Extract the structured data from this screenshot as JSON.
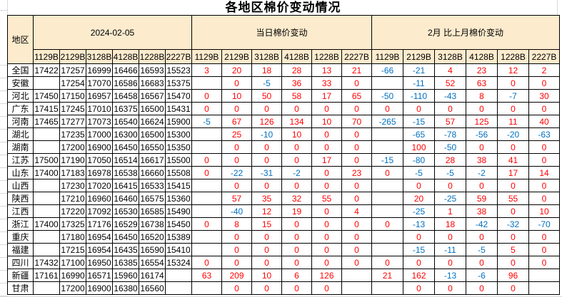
{
  "title": "各地区棉价变动情况",
  "colors": {
    "header_bg": "#FCEBCD",
    "positive_change": "#FF0000",
    "negative_change": "#0070C0",
    "table_border": "#000000"
  },
  "table": {
    "region_header": "地区",
    "groups": [
      {
        "label": "2024-02-05"
      },
      {
        "label": "当日棉价变动"
      },
      {
        "label": "2月 比上月棉价变动"
      }
    ],
    "subheaders": [
      "1129B",
      "2129B",
      "3128B",
      "4128B",
      "1228B",
      "2227B"
    ],
    "rows": [
      {
        "region": "全国",
        "prices": [
          17422,
          17257,
          16999,
          16466,
          16593,
          15523
        ],
        "daily": [
          3,
          20,
          18,
          28,
          13,
          21
        ],
        "monthly": [
          -66,
          -21,
          4,
          23,
          12,
          2
        ]
      },
      {
        "region": "安徽",
        "prices": [
          null,
          17254,
          17070,
          16586,
          16683,
          15375
        ],
        "daily": [
          null,
          0,
          -5,
          36,
          33,
          0
        ],
        "monthly": [
          null,
          -11,
          52,
          63,
          0,
          0
        ]
      },
      {
        "region": "河北",
        "prices": [
          17450,
          17150,
          16957,
          16458,
          16567,
          15470
        ],
        "daily": [
          0,
          10,
          50,
          58,
          17,
          65
        ],
        "monthly": [
          -50,
          -110,
          -43,
          8,
          -7,
          30
        ]
      },
      {
        "region": "广东",
        "prices": [
          17415,
          17245,
          17010,
          16375,
          16500,
          15431
        ],
        "daily": [
          0,
          0,
          0,
          0,
          0,
          0
        ],
        "monthly": [
          0,
          0,
          0,
          0,
          0,
          0
        ]
      },
      {
        "region": "河南",
        "prices": [
          17465,
          17277,
          17073,
          16540,
          16624,
          15900
        ],
        "daily": [
          -5,
          67,
          126,
          134,
          10,
          70
        ],
        "monthly": [
          -265,
          -15,
          57,
          125,
          11,
          40
        ]
      },
      {
        "region": "湖北",
        "prices": [
          null,
          17235,
          17000,
          16300,
          16500,
          15300
        ],
        "daily": [
          null,
          25,
          -10,
          10,
          0,
          0
        ],
        "monthly": [
          null,
          -65,
          -78,
          -56,
          -20,
          -63
        ]
      },
      {
        "region": "湖南",
        "prices": [
          null,
          17200,
          16900,
          16450,
          16550,
          15350
        ],
        "daily": [
          null,
          0,
          0,
          0,
          0,
          0
        ],
        "monthly": [
          null,
          100,
          -50,
          0,
          0,
          0
        ]
      },
      {
        "region": "江苏",
        "prices": [
          17500,
          17190,
          17050,
          16514,
          16617,
          15500
        ],
        "daily": [
          0,
          0,
          0,
          0,
          17,
          0
        ],
        "monthly": [
          -15,
          -80,
          28,
          38,
          41,
          0
        ]
      },
      {
        "region": "山东",
        "prices": [
          17400,
          17183,
          16978,
          16538,
          16660,
          15508
        ],
        "daily": [
          0,
          -22,
          -31,
          -2,
          0,
          23
        ],
        "monthly": [
          0,
          -5,
          -5,
          -2,
          17,
          14
        ]
      },
      {
        "region": "山西",
        "prices": [
          null,
          17230,
          17020,
          16415,
          16533,
          15415
        ],
        "daily": [
          null,
          0,
          0,
          0,
          0,
          0
        ],
        "monthly": [
          null,
          0,
          0,
          0,
          0,
          0
        ]
      },
      {
        "region": "陕西",
        "prices": [
          null,
          17210,
          16960,
          16460,
          16575,
          15360
        ],
        "daily": [
          null,
          57,
          35,
          32,
          55,
          0
        ],
        "monthly": [
          null,
          20,
          -25,
          59,
          55,
          0
        ]
      },
      {
        "region": "江西",
        "prices": [
          null,
          17220,
          17092,
          16530,
          16585,
          15490
        ],
        "daily": [
          null,
          -40,
          12,
          19,
          0,
          4
        ],
        "monthly": [
          null,
          -25,
          1,
          38,
          0,
          10
        ]
      },
      {
        "region": "浙江",
        "prices": [
          17400,
          17325,
          17176,
          16529,
          16738,
          15450
        ],
        "daily": [
          0,
          8,
          15,
          0,
          0,
          0
        ],
        "monthly": [
          0,
          -13,
          18,
          -42,
          -32,
          -70
        ]
      },
      {
        "region": "重庆",
        "prices": [
          null,
          17180,
          16954,
          16450,
          16520,
          15389
        ],
        "daily": [
          null,
          0,
          0,
          0,
          0,
          0
        ],
        "monthly": [
          null,
          0,
          0,
          0,
          0,
          0
        ]
      },
      {
        "region": "福建",
        "prices": [
          null,
          17215,
          16954,
          16435,
          16590,
          15410
        ],
        "daily": [
          null,
          0,
          0,
          0,
          0,
          0
        ],
        "monthly": [
          null,
          -15,
          -11,
          -5,
          5,
          0
        ]
      },
      {
        "region": "四川",
        "prices": [
          17432,
          17100,
          16950,
          16385,
          16554,
          15324
        ],
        "daily": [
          0,
          0,
          0,
          0,
          0,
          0
        ],
        "monthly": [
          0,
          0,
          0,
          0,
          0,
          0
        ]
      },
      {
        "region": "新疆",
        "prices": [
          17161,
          16990,
          16571,
          15960,
          16174,
          null
        ],
        "daily": [
          63,
          209,
          10,
          6,
          126,
          null
        ],
        "monthly": [
          21,
          162,
          -13,
          -6,
          96,
          null
        ]
      },
      {
        "region": "甘肃",
        "prices": [
          null,
          17200,
          16900,
          16380,
          16560,
          null
        ],
        "daily": [
          null,
          0,
          0,
          0,
          0,
          null
        ],
        "monthly": [
          null,
          0,
          0,
          0,
          0,
          null
        ]
      }
    ]
  }
}
